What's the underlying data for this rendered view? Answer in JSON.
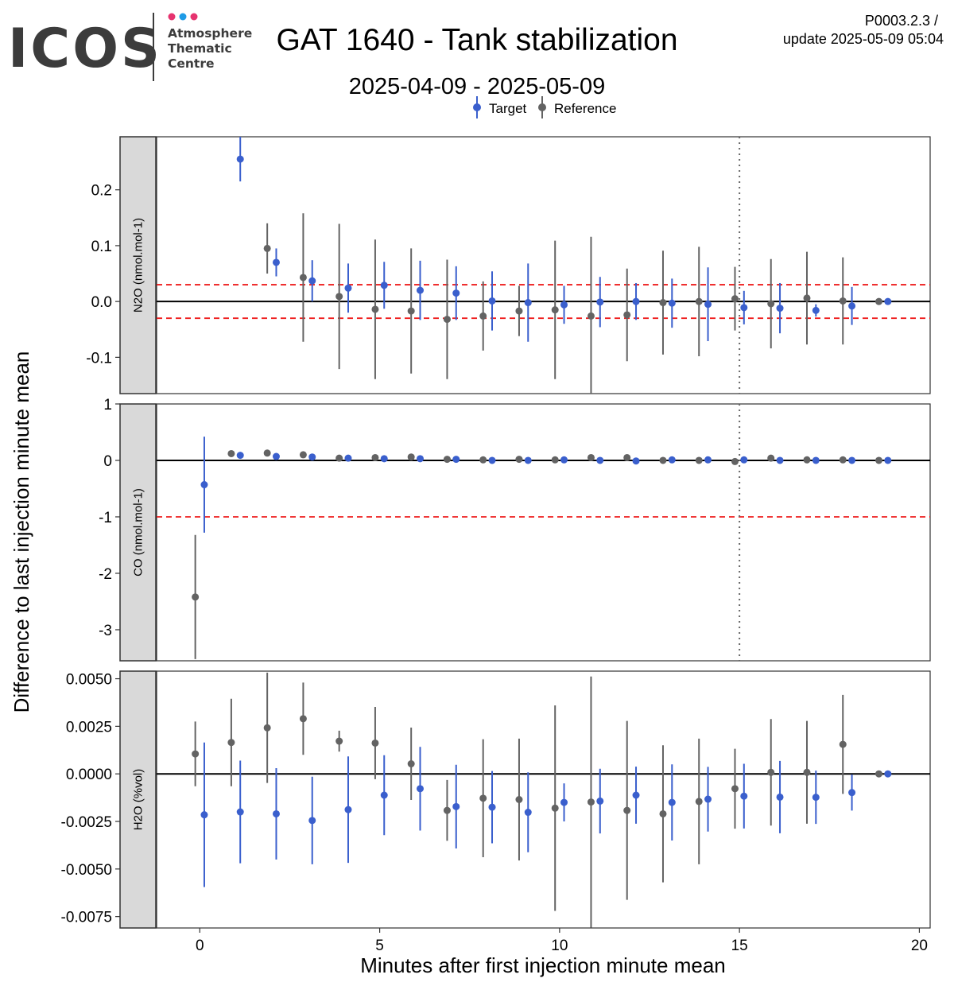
{
  "header": {
    "logo_text": "ICOS",
    "logo_sub": [
      "Atmosphere",
      "Thematic",
      "Centre"
    ],
    "title": "GAT 1640 - Tank stabilization",
    "subtitle": "2025-04-09 - 2025-05-09",
    "version": "P0003.2.3 /",
    "update": "update  2025-05-09 05:04"
  },
  "legend": {
    "target": "Target",
    "reference": "Reference"
  },
  "axes": {
    "xlabel": "Minutes after first injection minute mean",
    "ylabel": "Difference to last injection minute mean"
  },
  "colors": {
    "target": "#3a5fcd",
    "reference": "#636363",
    "threshold": "#ee1c1c",
    "dot_pink": "#e6336f",
    "dot_blue": "#1e9be6"
  },
  "chart_data": {
    "type": "scatter",
    "xlabel": "Minutes after first injection minute mean",
    "ylabel": "Difference to last injection minute mean",
    "xlim": [
      -1.2,
      20.3
    ],
    "xticks": [
      0,
      5,
      10,
      15,
      20
    ],
    "vline": 15,
    "panels": [
      {
        "id": "n2o",
        "strip": "N2O (nmol.mol-1)",
        "ylim": [
          -0.165,
          0.295
        ],
        "yticks": [
          -0.1,
          0.0,
          0.1,
          0.2
        ],
        "yticklabels": [
          "-0.1",
          "0.0",
          "0.1",
          "0.2"
        ],
        "thresholds": [
          0.03,
          -0.03
        ],
        "series": [
          {
            "name": "Target",
            "x": [
              1,
              2,
              3,
              4,
              5,
              6,
              7,
              8,
              9,
              10,
              11,
              12,
              13,
              14,
              15,
              16,
              17,
              18,
              19
            ],
            "y": [
              0.255,
              0.07,
              0.037,
              0.024,
              0.029,
              0.02,
              0.015,
              0.001,
              -0.002,
              -0.006,
              -0.001,
              0.0,
              -0.003,
              -0.005,
              -0.011,
              -0.012,
              -0.016,
              -0.008,
              0.0
            ],
            "err": [
              0.04,
              0.025,
              0.037,
              0.044,
              0.042,
              0.053,
              0.048,
              0.053,
              0.07,
              0.034,
              0.045,
              0.033,
              0.044,
              0.066,
              0.03,
              0.045,
              0.011,
              0.034,
              0.0
            ]
          },
          {
            "name": "Reference",
            "x": [
              0,
              1,
              2,
              3,
              4,
              5,
              6,
              7,
              8,
              9,
              10,
              11,
              12,
              13,
              14,
              15,
              16,
              17,
              18,
              19
            ],
            "y": [
              null,
              null,
              0.095,
              0.043,
              0.009,
              -0.014,
              -0.017,
              -0.032,
              -0.026,
              -0.017,
              -0.015,
              -0.026,
              -0.024,
              -0.002,
              0.0,
              0.005,
              -0.004,
              0.006,
              0.001,
              0.0
            ],
            "err": [
              null,
              null,
              0.045,
              0.115,
              0.13,
              0.125,
              0.112,
              0.107,
              0.062,
              0.045,
              0.124,
              0.142,
              0.083,
              0.093,
              0.098,
              0.057,
              0.08,
              0.083,
              0.078,
              0.0
            ]
          }
        ]
      },
      {
        "id": "co",
        "strip": "CO (nmol.mol-1)",
        "ylim": [
          -3.55,
          1.0
        ],
        "yticks": [
          -3,
          -2,
          -1,
          0,
          1
        ],
        "yticklabels": [
          "-3",
          "-2",
          "-1",
          "0",
          "1"
        ],
        "thresholds": [
          -1.0
        ],
        "series": [
          {
            "name": "Target",
            "x": [
              0,
              1,
              2,
              3,
              4,
              5,
              6,
              7,
              8,
              9,
              10,
              11,
              12,
              13,
              14,
              15,
              16,
              17,
              18,
              19
            ],
            "y": [
              -0.43,
              0.09,
              0.07,
              0.06,
              0.04,
              0.03,
              0.03,
              0.02,
              0.0,
              0.0,
              0.01,
              0.0,
              -0.01,
              0.01,
              0.01,
              0.01,
              0.0,
              0.0,
              0.0,
              0.0
            ],
            "err": [
              0.85,
              0.02,
              0.02,
              0.02,
              0.02,
              0.02,
              0.02,
              0.02,
              0.02,
              0.02,
              0.02,
              0.02,
              0.02,
              0.02,
              0.02,
              0.02,
              0.02,
              0.02,
              0.02,
              0.0
            ]
          },
          {
            "name": "Reference",
            "x": [
              0,
              1,
              2,
              3,
              4,
              5,
              6,
              7,
              8,
              9,
              10,
              11,
              12,
              13,
              14,
              15,
              16,
              17,
              18,
              19
            ],
            "y": [
              -2.42,
              0.12,
              0.13,
              0.1,
              0.04,
              0.05,
              0.06,
              0.02,
              0.01,
              0.02,
              0.01,
              0.05,
              0.05,
              0.0,
              0.0,
              -0.02,
              0.04,
              0.01,
              0.01,
              0.0
            ],
            "err": [
              1.1,
              0.02,
              0.02,
              0.02,
              0.02,
              0.02,
              0.02,
              0.02,
              0.02,
              0.02,
              0.02,
              0.02,
              0.02,
              0.02,
              0.02,
              0.02,
              0.02,
              0.02,
              0.02,
              0.0
            ]
          }
        ]
      },
      {
        "id": "h2o",
        "strip": "H2O (%vol)",
        "ylim": [
          -0.0081,
          0.0054
        ],
        "yticks": [
          -0.0075,
          -0.005,
          -0.0025,
          0.0,
          0.0025,
          0.005
        ],
        "yticklabels": [
          "-0.0075",
          "-0.0050",
          "-0.0025",
          "0.0000",
          "0.0025",
          "0.0050"
        ],
        "thresholds": [],
        "series": [
          {
            "name": "Target",
            "x": [
              0,
              1,
              2,
              3,
              4,
              5,
              6,
              7,
              8,
              9,
              10,
              11,
              12,
              13,
              14,
              15,
              16,
              17,
              18,
              19
            ],
            "y": [
              -0.00215,
              -0.002,
              -0.0021,
              -0.00245,
              -0.00188,
              -0.00112,
              -0.00078,
              -0.00172,
              -0.00175,
              -0.00202,
              -0.0015,
              -0.00143,
              -0.00112,
              -0.0015,
              -0.00133,
              -0.00117,
              -0.00122,
              -0.00123,
              -0.00098,
              0.0
            ],
            "err": [
              0.0038,
              0.0027,
              0.0024,
              0.0023,
              0.0028,
              0.0021,
              0.0022,
              0.0022,
              0.0019,
              0.0021,
              0.001,
              0.0017,
              0.0015,
              0.002,
              0.0017,
              0.0017,
              0.0019,
              0.0014,
              0.00095,
              0.0
            ]
          },
          {
            "name": "Reference",
            "x": [
              0,
              1,
              2,
              3,
              4,
              5,
              6,
              7,
              8,
              9,
              10,
              11,
              12,
              13,
              14,
              15,
              16,
              17,
              18,
              19
            ],
            "y": [
              0.00105,
              0.00165,
              0.00242,
              0.0029,
              0.00172,
              0.00162,
              0.00053,
              -0.00192,
              -0.00128,
              -0.00135,
              -0.0018,
              -0.00148,
              -0.00192,
              -0.0021,
              -0.00145,
              -0.00078,
              8e-05,
              8e-05,
              0.00155,
              0.0
            ],
            "err": [
              0.0017,
              0.0023,
              0.0029,
              0.0019,
              0.00055,
              0.0019,
              0.0019,
              0.0016,
              0.0031,
              0.0032,
              0.0054,
              0.0066,
              0.0047,
              0.0036,
              0.0033,
              0.0021,
              0.0028,
              0.0027,
              0.0026,
              0.0
            ]
          }
        ]
      }
    ]
  }
}
